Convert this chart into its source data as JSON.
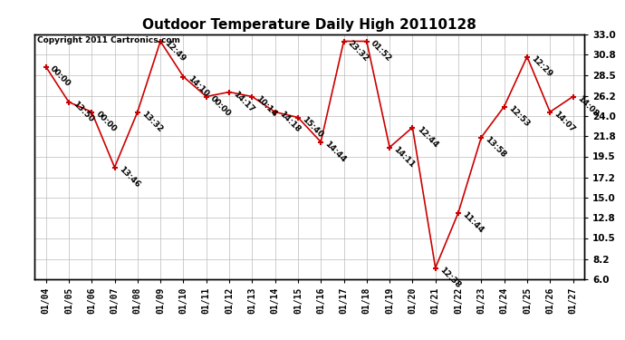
{
  "title": "Outdoor Temperature Daily High 20110128",
  "copyright": "Copyright 2011 Cartronics.com",
  "dates": [
    "01/04",
    "01/05",
    "01/06",
    "01/07",
    "01/08",
    "01/09",
    "01/10",
    "01/11",
    "01/12",
    "01/13",
    "01/14",
    "01/15",
    "01/16",
    "01/17",
    "01/18",
    "01/19",
    "01/20",
    "01/21",
    "01/22",
    "01/23",
    "01/24",
    "01/25",
    "01/26",
    "01/27"
  ],
  "values": [
    29.4,
    25.5,
    24.4,
    18.3,
    24.4,
    32.2,
    28.3,
    26.1,
    26.6,
    26.1,
    24.4,
    23.8,
    21.1,
    32.2,
    32.2,
    20.5,
    22.7,
    7.2,
    13.3,
    21.6,
    25.0,
    30.5,
    24.4,
    26.1
  ],
  "annotations": [
    "00:00",
    "13:50",
    "00:00",
    "13:46",
    "13:32",
    "12:49",
    "14:10",
    "00:00",
    "14:17",
    "10:14",
    "14:18",
    "15:40",
    "14:44",
    "23:32",
    "01:52",
    "14:11",
    "12:44",
    "12:38",
    "11:44",
    "13:58",
    "12:53",
    "12:29",
    "14:07",
    "14:08"
  ],
  "ylim": [
    6.0,
    33.0
  ],
  "yticks": [
    6.0,
    8.2,
    10.5,
    12.8,
    15.0,
    17.2,
    19.5,
    21.8,
    24.0,
    26.2,
    28.5,
    30.8,
    33.0
  ],
  "line_color": "#cc0000",
  "marker_color": "#cc0000",
  "bg_color": "#ffffff",
  "grid_color": "#bbbbbb",
  "title_fontsize": 11,
  "annot_fontsize": 6.5,
  "copyright_fontsize": 6.5,
  "xtick_fontsize": 7,
  "ytick_fontsize": 7.5
}
